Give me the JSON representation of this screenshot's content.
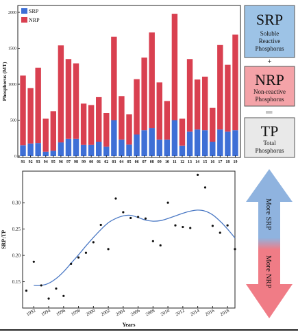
{
  "chart_data": [
    {
      "type": "bar",
      "stacked": true,
      "ylabel": "Phosphorus (MT)",
      "ylim": [
        0,
        2000
      ],
      "yticks": [
        0,
        500,
        1000,
        1500,
        2000
      ],
      "categories": [
        "91",
        "92",
        "93",
        "94",
        "95",
        "96",
        "97",
        "98",
        "99",
        "00",
        "01",
        "02",
        "03",
        "04",
        "05",
        "06",
        "07",
        "08",
        "09",
        "10",
        "11",
        "12",
        "13",
        "14",
        "15",
        "16",
        "17",
        "18",
        "19"
      ],
      "series": [
        {
          "name": "SRP",
          "color": "#3e6fd6",
          "values": [
            150,
            175,
            180,
            60,
            75,
            190,
            240,
            240,
            155,
            155,
            200,
            130,
            500,
            230,
            160,
            300,
            360,
            390,
            230,
            230,
            500,
            145,
            340,
            370,
            360,
            200,
            370,
            340,
            360
          ]
        },
        {
          "name": "NRP",
          "color": "#d94050",
          "values": [
            970,
            770,
            1050,
            460,
            550,
            1350,
            1110,
            1050,
            575,
            555,
            620,
            470,
            1160,
            605,
            420,
            770,
            1010,
            1330,
            795,
            535,
            1480,
            375,
            1010,
            695,
            745,
            470,
            1175,
            930,
            1330
          ]
        }
      ],
      "legend": {
        "position": "top-left",
        "entries": [
          "SRP",
          "NRP"
        ]
      },
      "grid": false
    },
    {
      "type": "scatter",
      "xlabel": "Years",
      "ylabel": "SRP:TP",
      "xlim": [
        1990.5,
        2019
      ],
      "ylim": [
        0.1,
        0.36
      ],
      "xticks": [
        1992,
        1994,
        1996,
        1998,
        2000,
        2002,
        2004,
        2006,
        2008,
        2010,
        2012,
        2014,
        2016,
        2018
      ],
      "yticks": [
        0.15,
        0.2,
        0.25,
        0.3
      ],
      "ytick_labels": [
        "0.15",
        "0.20",
        "0.25",
        "0.30"
      ],
      "points": [
        {
          "x": 1991,
          "y": 0.133
        },
        {
          "x": 1992,
          "y": 0.188
        },
        {
          "x": 1993,
          "y": 0.143
        },
        {
          "x": 1994,
          "y": 0.118
        },
        {
          "x": 1995,
          "y": 0.137
        },
        {
          "x": 1996,
          "y": 0.123
        },
        {
          "x": 1997,
          "y": 0.184
        },
        {
          "x": 1998,
          "y": 0.196
        },
        {
          "x": 1999,
          "y": 0.205
        },
        {
          "x": 2000,
          "y": 0.225
        },
        {
          "x": 2001,
          "y": 0.258
        },
        {
          "x": 2002,
          "y": 0.212
        },
        {
          "x": 2003,
          "y": 0.308
        },
        {
          "x": 2004,
          "y": 0.282
        },
        {
          "x": 2005,
          "y": 0.271
        },
        {
          "x": 2006,
          "y": 0.273
        },
        {
          "x": 2007,
          "y": 0.27
        },
        {
          "x": 2008,
          "y": 0.227
        },
        {
          "x": 2009,
          "y": 0.219
        },
        {
          "x": 2010,
          "y": 0.3
        },
        {
          "x": 2011,
          "y": 0.257
        },
        {
          "x": 2012,
          "y": 0.254
        },
        {
          "x": 2013,
          "y": 0.252
        },
        {
          "x": 2014,
          "y": 0.353
        },
        {
          "x": 2015,
          "y": 0.329
        },
        {
          "x": 2016,
          "y": 0.256
        },
        {
          "x": 2017,
          "y": 0.243
        },
        {
          "x": 2018,
          "y": 0.257
        },
        {
          "x": 2019,
          "y": 0.212
        }
      ],
      "trend_line": {
        "color": "#4a78c4",
        "x": [
          1992,
          1993,
          1994,
          1995,
          1996,
          1997,
          1998,
          1999,
          2000,
          2001,
          2002,
          2003,
          2004,
          2005,
          2006,
          2007,
          2008,
          2009,
          2010,
          2011,
          2012,
          2013,
          2014,
          2015,
          2016,
          2017,
          2018,
          2019
        ],
        "y": [
          0.143,
          0.143,
          0.147,
          0.156,
          0.169,
          0.185,
          0.201,
          0.218,
          0.234,
          0.249,
          0.262,
          0.27,
          0.275,
          0.276,
          0.272,
          0.267,
          0.265,
          0.266,
          0.27,
          0.275,
          0.28,
          0.284,
          0.286,
          0.284,
          0.277,
          0.265,
          0.25,
          0.233
        ]
      }
    }
  ],
  "panel": {
    "srp_title": "SRP",
    "srp_desc": [
      "Soluble",
      "Reactive",
      "Phosphorus"
    ],
    "plus": "+",
    "nrp_title": "NRP",
    "nrp_desc": [
      "Non-reactive",
      "Phosphorus"
    ],
    "equals": "||",
    "tp_title": "TP",
    "tp_desc": [
      "Total",
      "Phosphorus"
    ],
    "srp_fill": "#9dc3e6",
    "nrp_fill": "#f4a3a8",
    "tp_fill": "#e9e9e9"
  },
  "arrow": {
    "up_label": "More SRP",
    "down_label": "More NRP",
    "up_color": "#8fb3df",
    "down_color": "#f07c86"
  }
}
